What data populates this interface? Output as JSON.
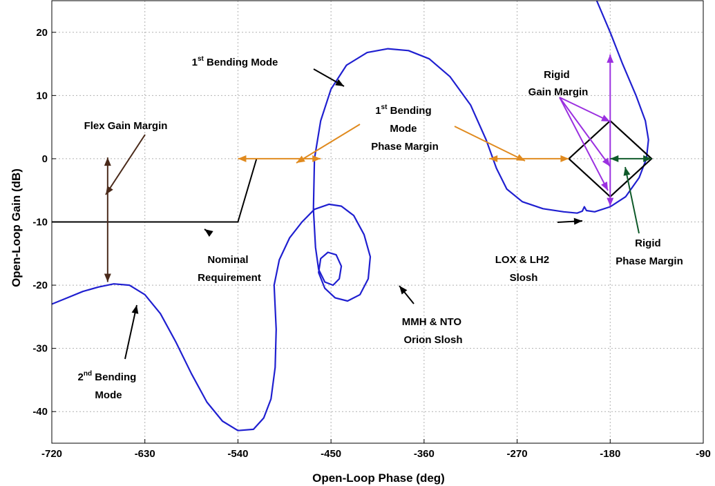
{
  "chart_data": {
    "type": "line",
    "title": "",
    "xlabel": "Open-Loop Phase (deg)",
    "ylabel": "Open-Loop Gain (dB)",
    "xlim": [
      -720,
      -90
    ],
    "ylim": [
      -45,
      25
    ],
    "xticks": [
      -720,
      -630,
      -540,
      -450,
      -360,
      -270,
      -180,
      -90
    ],
    "yticks": [
      -40,
      -30,
      -20,
      -10,
      0,
      10,
      20
    ],
    "xtick_labels": [
      "-720",
      "-630",
      "-540",
      "-450",
      "-360",
      "-270",
      "-180",
      "-90"
    ],
    "ytick_labels": [
      "-40",
      "-30",
      "-20",
      "-10",
      "0",
      "10",
      "20"
    ],
    "grid": true,
    "colors": {
      "nichols": "#1f1fd0",
      "requirement": "#000000",
      "phase_margin_arrow": "#e08a1e",
      "rigid_gain_arrow": "#9b30e0",
      "rigid_phase_arrow": "#0f5a2a",
      "flex_gain_arrow": "#4a2a1a"
    },
    "series": [
      {
        "values": [
          [
            -720,
            -23
          ],
          [
            -705,
            -22
          ],
          [
            -690,
            -21
          ],
          [
            -675,
            -20.3
          ],
          [
            -660,
            -19.8
          ],
          [
            -645,
            -20
          ],
          [
            -630,
            -21.5
          ],
          [
            -615,
            -24.5
          ],
          [
            -600,
            -29
          ],
          [
            -585,
            -34
          ],
          [
            -570,
            -38.5
          ],
          [
            -555,
            -41.5
          ],
          [
            -540,
            -43
          ],
          [
            -525,
            -42.8
          ],
          [
            -515,
            -41
          ],
          [
            -508,
            -38
          ],
          [
            -504,
            -33
          ],
          [
            -503,
            -27
          ],
          [
            -505,
            -20
          ],
          [
            -500,
            -16
          ],
          [
            -490,
            -12.5
          ],
          [
            -478,
            -10
          ],
          [
            -466,
            -8
          ],
          [
            -452,
            -7.2
          ],
          [
            -440,
            -7.5
          ],
          [
            -428,
            -9
          ],
          [
            -418,
            -12
          ],
          [
            -412,
            -15.5
          ],
          [
            -414,
            -19
          ],
          [
            -422,
            -21.5
          ],
          [
            -434,
            -22.5
          ],
          [
            -446,
            -22
          ],
          [
            -456,
            -20.5
          ],
          [
            -462,
            -18
          ],
          [
            -460,
            -15.8
          ],
          [
            -453,
            -14.8
          ],
          [
            -445,
            -15.2
          ],
          [
            -440,
            -17
          ],
          [
            -442,
            -19
          ],
          [
            -448,
            -20
          ],
          [
            -456,
            -19.5
          ],
          [
            -462,
            -17.5
          ],
          [
            -465,
            -14
          ],
          [
            -467,
            -8
          ],
          [
            -466,
            0
          ],
          [
            -460,
            6
          ],
          [
            -450,
            11
          ],
          [
            -435,
            14.8
          ],
          [
            -415,
            16.8
          ],
          [
            -395,
            17.4
          ],
          [
            -375,
            17.1
          ],
          [
            -355,
            15.8
          ],
          [
            -335,
            13
          ],
          [
            -315,
            8.5
          ],
          [
            -300,
            3
          ],
          [
            -290,
            -1.5
          ],
          [
            -280,
            -4.8
          ],
          [
            -265,
            -6.8
          ],
          [
            -245,
            -7.9
          ],
          [
            -225,
            -8.4
          ],
          [
            -212,
            -8.6
          ],
          [
            -207,
            -8.3
          ],
          [
            -205,
            -7.6
          ],
          [
            -203,
            -8.2
          ],
          [
            -195,
            -8.4
          ],
          [
            -180,
            -7.6
          ],
          [
            -165,
            -6
          ],
          [
            -152,
            -3
          ],
          [
            -145,
            0
          ],
          [
            -143,
            3
          ],
          [
            -146,
            6
          ],
          [
            -155,
            10
          ],
          [
            -168,
            15
          ],
          [
            -180,
            20
          ],
          [
            -193,
            25
          ]
        ]
      },
      {
        "values": [
          [
            -720,
            -10
          ],
          [
            -540,
            -10
          ],
          [
            -522,
            0
          ]
        ]
      }
    ],
    "annotations": [
      {
        "text": "Flex Gain Margin"
      },
      {
        "text": "1",
        "sup": "st",
        "rest": " Bending Mode"
      },
      {
        "lines": [
          {
            "text": "1",
            "sup": "st",
            "rest": " Bending"
          },
          {
            "text": "Mode"
          },
          {
            "text": "Phase Margin"
          }
        ]
      },
      {
        "lines": [
          {
            "text": "Rigid"
          },
          {
            "text": "Gain Margin"
          }
        ]
      },
      {
        "lines": [
          {
            "text": "Nominal"
          },
          {
            "text": "Requirement"
          }
        ]
      },
      {
        "lines": [
          {
            "text": "LOX & LH2"
          },
          {
            "text": "Slosh"
          }
        ]
      },
      {
        "lines": [
          {
            "text": "Rigid"
          },
          {
            "text": "Phase Margin"
          }
        ]
      },
      {
        "lines": [
          {
            "text": "MMH & NTO"
          },
          {
            "text": "Orion Slosh"
          }
        ]
      },
      {
        "lines": [
          {
            "text": "2",
            "sup": "nd"
          },
          {
            "text": "Mode"
          }
        ],
        "line0_rest": " Bending"
      }
    ]
  }
}
